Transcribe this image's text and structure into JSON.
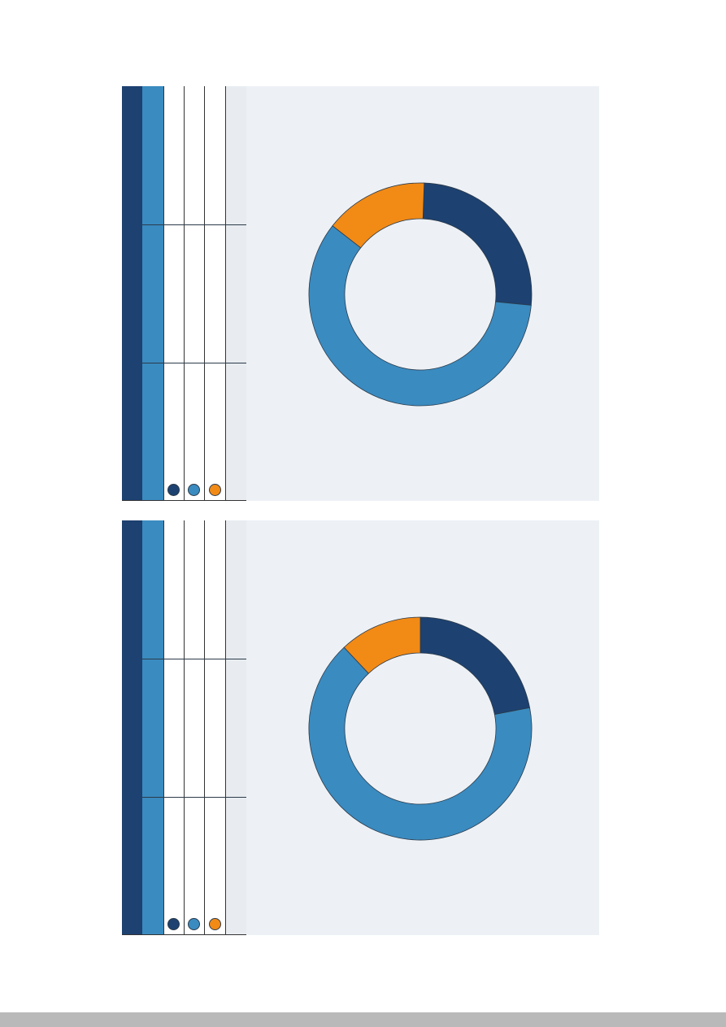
{
  "colors": {
    "navy": "#1d4170",
    "blue": "#3a8bc0",
    "orange": "#f28a16",
    "chart_bg": "#edf1f5",
    "table_grey": "#e8ecf0",
    "footer": "#b9b9b9"
  },
  "legend_markers": [
    {
      "color": "#1d4170",
      "icon": "navy-dot"
    },
    {
      "color": "#3a8bc0",
      "icon": "blue-dot"
    },
    {
      "color": "#f28a16",
      "icon": "orange-dot"
    }
  ],
  "chart_data": [
    {
      "type": "pie",
      "donut": true,
      "values": [
        26,
        59,
        15
      ],
      "colors": [
        "#1d4170",
        "#3a8bc0",
        "#f28a16"
      ],
      "start_angle_deg": 272,
      "direction": "clockwise"
    },
    {
      "type": "pie",
      "donut": true,
      "values": [
        22,
        66,
        12
      ],
      "colors": [
        "#1d4170",
        "#3a8bc0",
        "#f28a16"
      ],
      "start_angle_deg": 270,
      "direction": "clockwise"
    }
  ]
}
